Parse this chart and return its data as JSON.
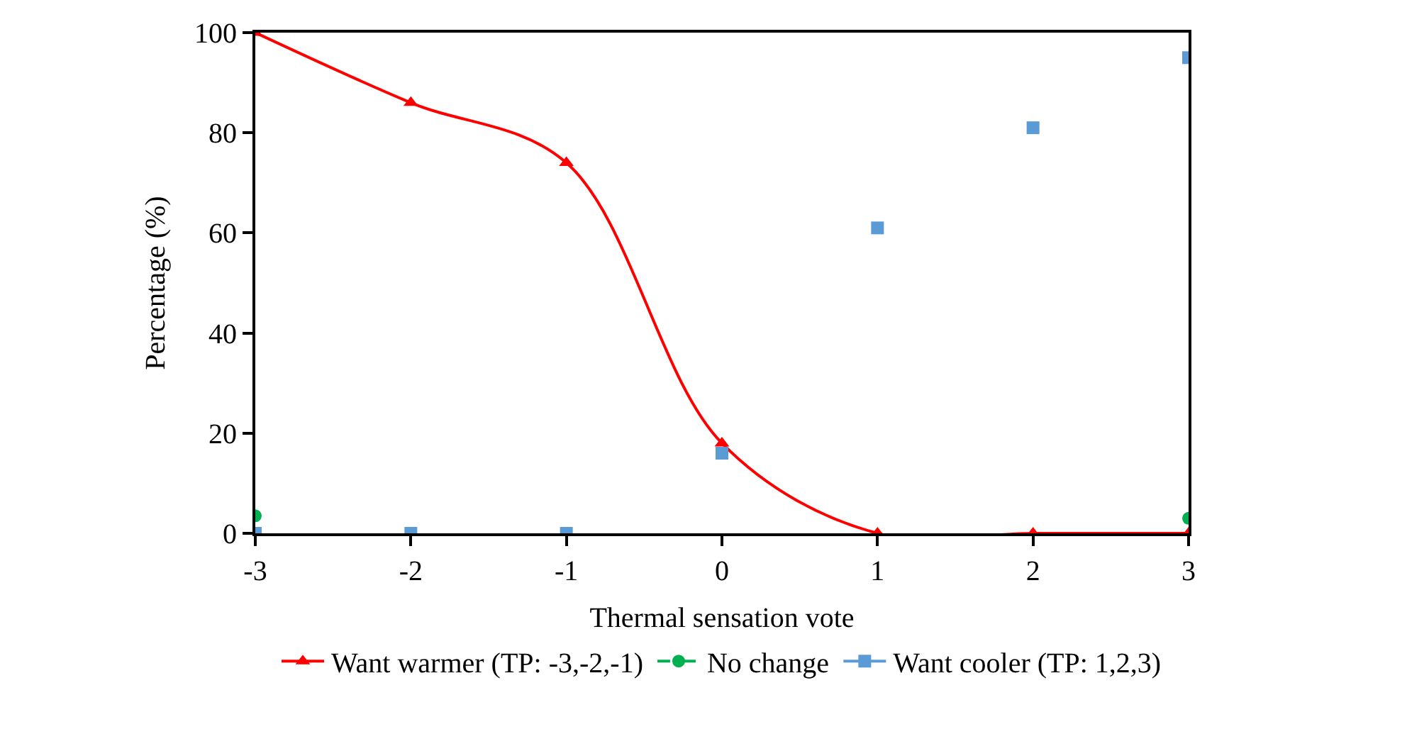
{
  "chart_data": {
    "type": "line",
    "xlabel": "Thermal sensation vote",
    "ylabel": "Percentage (%)",
    "x": [
      -3,
      -2,
      -1,
      0,
      1,
      2,
      3
    ],
    "xlim": [
      -3,
      3
    ],
    "xticks": [
      -3,
      -2,
      -1,
      0,
      1,
      2,
      3
    ],
    "ylim": [
      0,
      100
    ],
    "yticks": [
      0,
      20,
      40,
      60,
      80,
      100
    ],
    "legend": "bottom",
    "series": [
      {
        "name": "Want warmer (TP: -3,-2,-1)",
        "color": "#ff0000",
        "marker": "triangle",
        "line_style": "solid",
        "values": [
          100,
          86,
          74,
          18,
          0,
          0,
          0
        ]
      },
      {
        "name": "No change",
        "color": "#00b050",
        "type": "scatter",
        "marker": "circle",
        "line_style": "dashed",
        "values": [
          3.5,
          null,
          null,
          null,
          null,
          null,
          3
        ]
      },
      {
        "name": "Want cooler (TP: 1,2,3)",
        "color": "#5b9bd5",
        "type": "scatter",
        "marker": "square",
        "line_style": "solid",
        "values": [
          0,
          0,
          0,
          16,
          61,
          81,
          95
        ]
      }
    ]
  }
}
